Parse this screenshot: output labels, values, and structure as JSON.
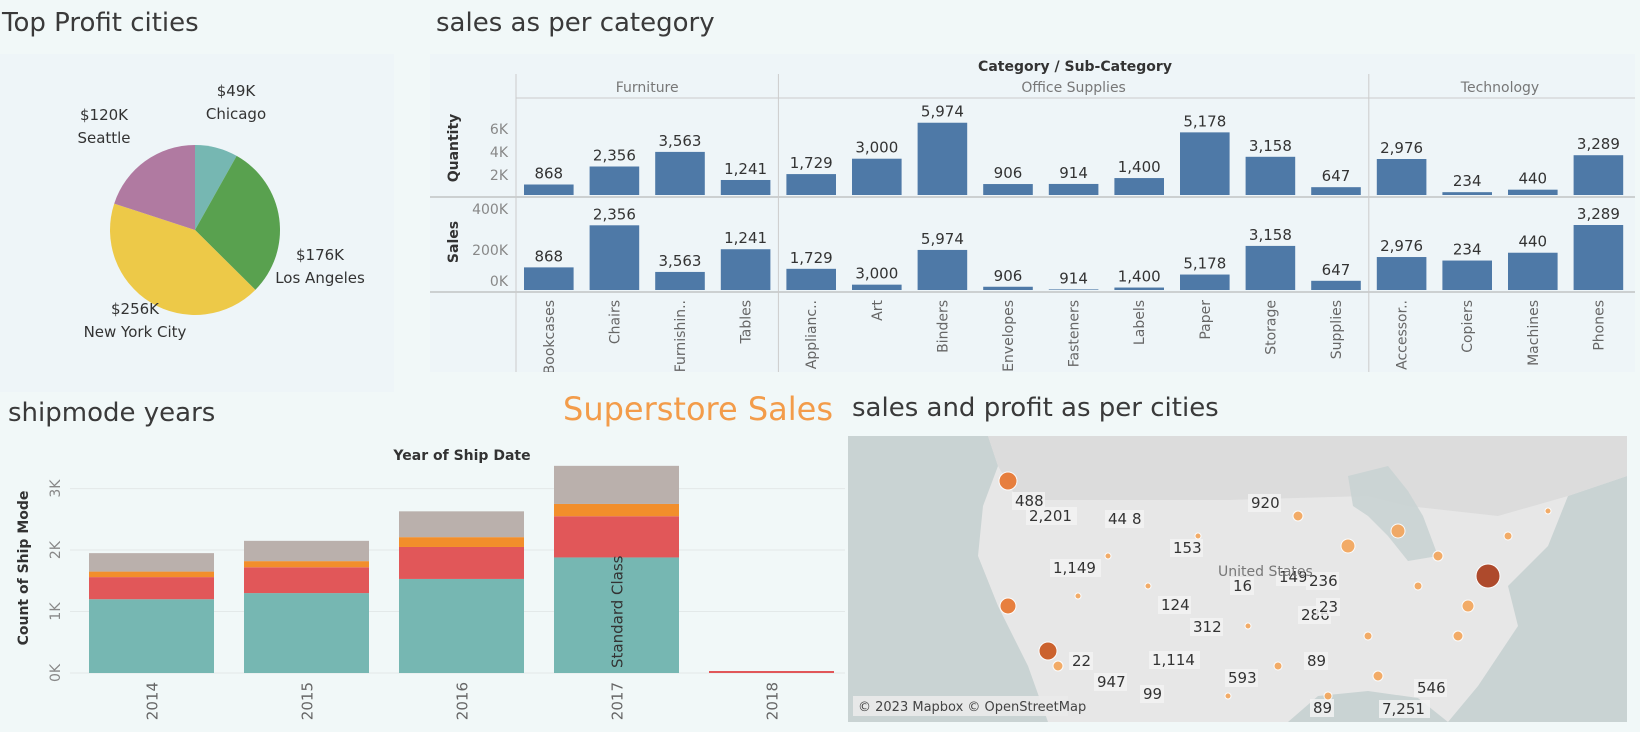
{
  "dashboard_title": "Superstore Sales",
  "panels": {
    "pie_title": "Top Profit cities",
    "category_title": "sales as per category",
    "shipmode_title": "shipmode years",
    "map_title": "sales and profit as per cities"
  },
  "colors": {
    "bar_blue": "#4e79a7",
    "teal": "#76b7b2",
    "red": "#e15759",
    "orange": "#f28e2b",
    "gray": "#bab0ac",
    "green": "#59a14f",
    "yellow": "#edc948",
    "purple": "#b07aa1",
    "title_orange": "#f39c4a"
  },
  "chart_data": [
    {
      "type": "pie",
      "title": "Top Profit cities",
      "slices": [
        {
          "label": "Chicago",
          "value": 49,
          "display": "$49K",
          "color": "#76b7b2"
        },
        {
          "label": "Los Angeles",
          "value": 176,
          "display": "$176K",
          "color": "#59a14f"
        },
        {
          "label": "New York City",
          "value": 256,
          "display": "$256K",
          "color": "#edc948"
        },
        {
          "label": "Seattle",
          "value": 120,
          "display": "$120K",
          "color": "#b07aa1"
        }
      ]
    },
    {
      "type": "bar",
      "title": "sales as per category",
      "header": "Category / Sub-Category",
      "groups": [
        {
          "name": "Furniture",
          "subs": [
            "Bookcases",
            "Chairs",
            "Furnishin..",
            "Tables"
          ]
        },
        {
          "name": "Office Supplies",
          "subs": [
            "Applianc..",
            "Art",
            "Binders",
            "Envelopes",
            "Fasteners",
            "Labels",
            "Paper",
            "Storage",
            "Supplies"
          ]
        },
        {
          "name": "Technology",
          "subs": [
            "Accessor..",
            "Copiers",
            "Machines",
            "Phones"
          ]
        }
      ],
      "quantity": {
        "label": "Quantity",
        "ticks": [
          "6K",
          "4K",
          "2K"
        ],
        "ylim": [
          0,
          6500
        ],
        "values": [
          868,
          2356,
          3563,
          1241,
          1729,
          3000,
          5974,
          906,
          914,
          1400,
          5178,
          3158,
          647,
          2976,
          234,
          440,
          3289
        ],
        "labels": [
          "868",
          "2,356",
          "3,563",
          "1,241",
          "1,729",
          "3,000",
          "5,974",
          "906",
          "914",
          "1,400",
          "5,178",
          "3,158",
          "647",
          "2,976",
          "234",
          "440",
          "3,289"
        ]
      },
      "sales": {
        "label": "Sales",
        "ticks": [
          "400K",
          "200K",
          "0K"
        ],
        "ylim": [
          0,
          400000
        ],
        "values": [
          114880,
          328449,
          91705,
          206966,
          107532,
          27119,
          203413,
          16476,
          3024,
          12486,
          78479,
          223844,
          46674,
          167380,
          149528,
          189239,
          330007
        ],
        "labels": [
          "868",
          "2,356",
          "3,563",
          "1,241",
          "1,729",
          "3,000",
          "5,974",
          "906",
          "914",
          "1,400",
          "5,178",
          "3,158",
          "647",
          "2,976",
          "234",
          "440",
          "3,289"
        ]
      }
    },
    {
      "type": "bar",
      "stacked": true,
      "title": "shipmode years",
      "header": "Year of Ship Date",
      "ylabel": "Count of Ship Mode",
      "ticks": [
        "3K",
        "2K",
        "1K",
        "0K"
      ],
      "ylim": [
        0,
        3500
      ],
      "categories": [
        "2014",
        "2015",
        "2016",
        "2017",
        "2018"
      ],
      "series": [
        {
          "label": "Standard Class",
          "color": "#76b7b2",
          "values": [
            1200,
            1300,
            1530,
            1880,
            0
          ]
        },
        {
          "color": "#e15759",
          "values": [
            360,
            420,
            520,
            670,
            0
          ]
        },
        {
          "color": "#f28e2b",
          "values": [
            90,
            100,
            160,
            200,
            0
          ]
        },
        {
          "color": "#bab0ac",
          "values": [
            300,
            330,
            420,
            620,
            0
          ]
        }
      ],
      "annotation": "Standard Class"
    }
  ],
  "map": {
    "labels": [
      "2,201",
      "488",
      "44",
      "8",
      "920",
      "153",
      "1,149",
      "149",
      "16",
      "236",
      "124",
      "286",
      "23",
      "312",
      "22",
      "1,114",
      "89",
      "947",
      "99",
      "593",
      "546",
      "89",
      "7,251"
    ],
    "country_label": "United States",
    "attribution": "© 2023 Mapbox © OpenStreetMap"
  }
}
